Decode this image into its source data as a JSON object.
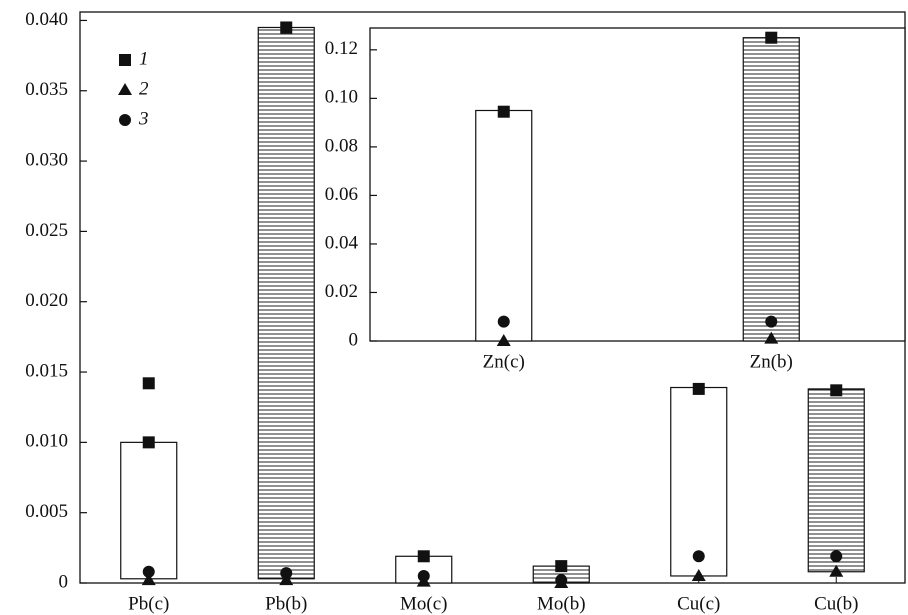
{
  "chart_data": [
    {
      "type": "range_bar",
      "categories": [
        "Pb(c)",
        "Pb(b)",
        "Mo(c)",
        "Mo(b)",
        "Cu(c)",
        "Cu(b)"
      ],
      "bars": {
        "low": [
          0.0003,
          0.0003,
          0,
          0,
          0.0005,
          0.0008
        ],
        "high": [
          0.01,
          0.0395,
          0.0019,
          0.0012,
          0.0139,
          0.0138
        ],
        "patterns": [
          "plain",
          "hatched",
          "plain",
          "hatched",
          "plain",
          "hatched"
        ]
      },
      "series": [
        {
          "name": "1",
          "marker": "square",
          "color": "#111111",
          "values": [
            [
              0.01,
              0.0142
            ],
            [
              0.0395
            ],
            [
              0.0019
            ],
            [
              0.0012
            ],
            [
              0.0138
            ],
            [
              0.0137
            ]
          ]
        },
        {
          "name": "2",
          "marker": "triangle",
          "color": "#111111",
          "values": [
            [
              0.0002
            ],
            [
              0.0002
            ],
            [
              0.0001
            ],
            [
              0
            ],
            [
              0.0005
            ],
            [
              0.0008
            ]
          ]
        },
        {
          "name": "3",
          "marker": "circle",
          "color": "#111111",
          "values": [
            [
              0.0008
            ],
            [
              0.0007
            ],
            [
              0.0005
            ],
            [
              0.0002
            ],
            [
              0.0019
            ],
            [
              0.0019
            ]
          ]
        }
      ],
      "legend": "upper left",
      "ylim": [
        0,
        0.0406
      ],
      "yticks": [
        0,
        0.005,
        {
          "value": 0.01,
          "label": "0.010"
        },
        0.015,
        {
          "value": 0.02,
          "label": "0.020"
        },
        0.025,
        {
          "value": 0.03,
          "label": "0.030"
        },
        0.035,
        {
          "value": 0.04,
          "label": "0.040"
        }
      ]
    },
    {
      "type": "range_bar",
      "categories": [
        "Zn(c)",
        "Zn(b)"
      ],
      "bars": {
        "low": [
          0,
          0
        ],
        "high": [
          0.095,
          0.125
        ],
        "patterns": [
          "plain",
          "hatched"
        ]
      },
      "series": [
        {
          "marker": "square",
          "color": "#111111",
          "values": [
            [
              0.0945
            ],
            [
              0.125
            ]
          ]
        },
        {
          "marker": "triangle",
          "color": "#111111",
          "values": [
            [
              0
            ],
            [
              0.001
            ]
          ]
        },
        {
          "marker": "circle",
          "color": "#111111",
          "values": [
            [
              0.008
            ],
            [
              0.008
            ]
          ]
        }
      ],
      "ylim": [
        0,
        0.129
      ],
      "yticks": [
        0,
        0.02,
        0.04,
        0.06,
        0.08,
        {
          "value": 0.1,
          "label": "0.10"
        },
        0.12
      ]
    }
  ]
}
